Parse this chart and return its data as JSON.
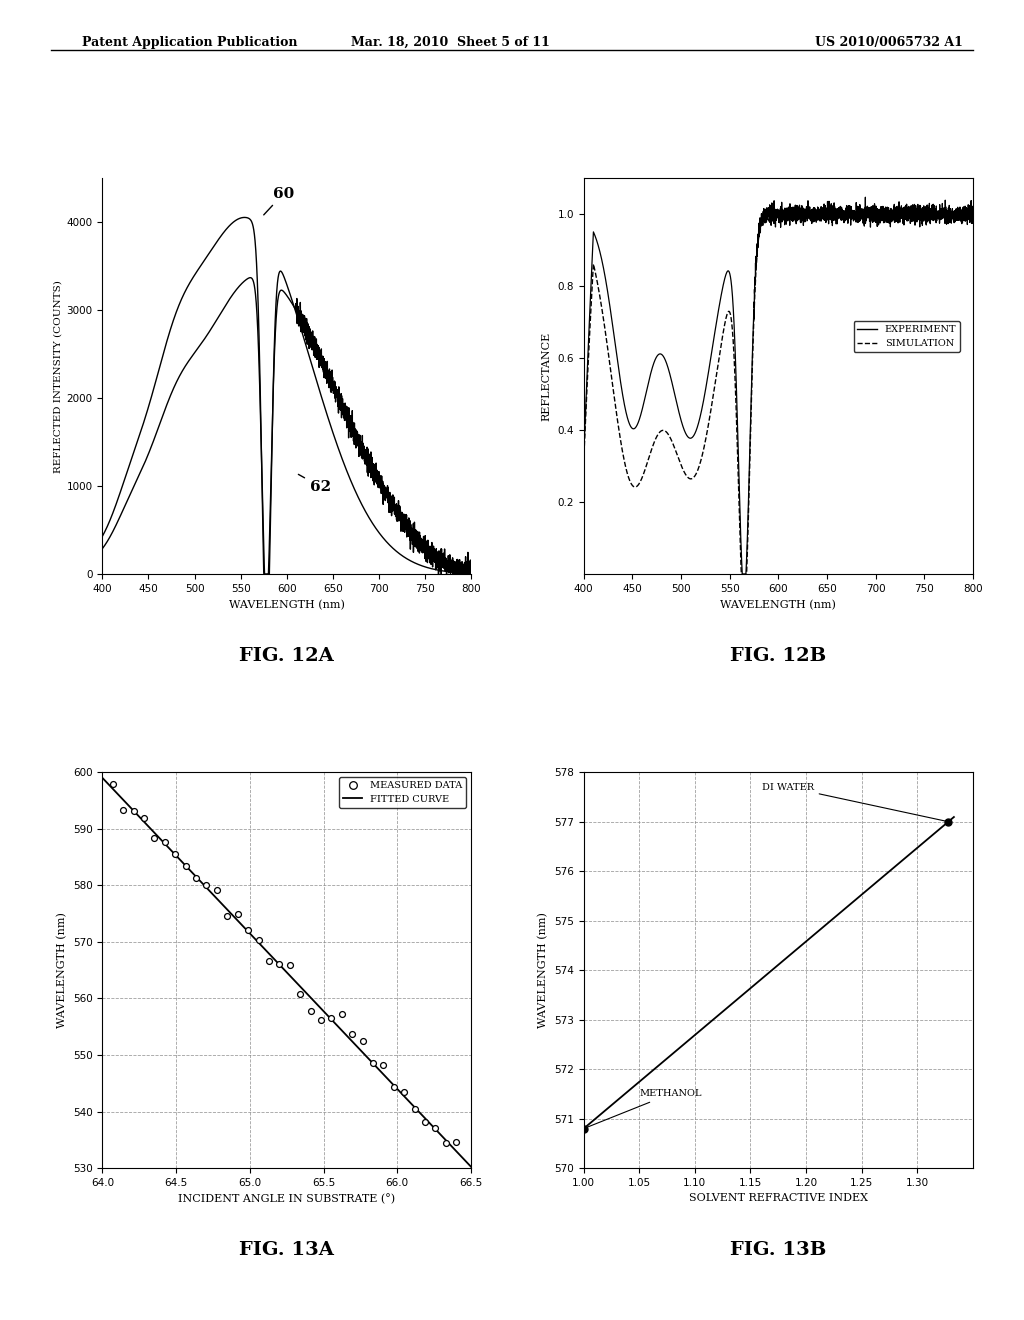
{
  "header_left": "Patent Application Publication",
  "header_center": "Mar. 18, 2010  Sheet 5 of 11",
  "header_right": "US 2010/0065732 A1",
  "fig12a": {
    "title": "FIG. 12A",
    "xlabel": "WAVELENGTH (nm)",
    "ylabel": "REFLECTED INTENSITY (COUNTS)",
    "xlim": [
      400,
      800
    ],
    "ylim": [
      0,
      4500
    ],
    "yticks": [
      0,
      1000,
      2000,
      3000,
      4000
    ],
    "xticks": [
      400,
      450,
      500,
      550,
      600,
      650,
      700,
      750,
      800
    ],
    "label60": "60",
    "label62": "62"
  },
  "fig12b": {
    "title": "FIG. 12B",
    "xlabel": "WAVELENGTH (nm)",
    "ylabel": "REFLECTANCE",
    "xlim": [
      400,
      800
    ],
    "ylim": [
      0,
      1.1
    ],
    "yticks": [
      0.2,
      0.4,
      0.6,
      0.8,
      1.0
    ],
    "xticks": [
      400,
      450,
      500,
      550,
      600,
      650,
      700,
      750,
      800
    ],
    "legend_experiment": "EXPERIMENT",
    "legend_simulation": "SIMULATION"
  },
  "fig13a": {
    "title": "FIG. 13A",
    "xlabel": "INCIDENT ANGLE IN SUBSTRATE (°)",
    "ylabel": "WAVELENGTH (nm)",
    "xlim": [
      64,
      66.5
    ],
    "ylim": [
      530,
      600
    ],
    "yticks": [
      530,
      540,
      550,
      560,
      570,
      580,
      590,
      600
    ],
    "xticks": [
      64,
      64.5,
      65,
      65.5,
      66,
      66.5
    ],
    "legend_measured": "MEASURED DATA",
    "legend_fitted": "FITTED CURVE"
  },
  "fig13b": {
    "title": "FIG. 13B",
    "xlabel": "SOLVENT REFRACTIVE INDEX",
    "ylabel": "WAVELENGTH (nm)",
    "xlim": [
      1.0,
      1.35
    ],
    "ylim": [
      570,
      578
    ],
    "yticks": [
      570,
      571,
      572,
      573,
      574,
      575,
      576,
      577,
      578
    ],
    "xticks": [
      1.0,
      1.05,
      1.1,
      1.15,
      1.2,
      1.25,
      1.3
    ],
    "label_diwater": "DI WATER",
    "label_methanol": "METHANOL",
    "ri_methanol": 1.0,
    "wl_methanol": 570.8,
    "ri_diwater": 1.328,
    "wl_diwater": 577.0
  },
  "bg_color": "#ffffff",
  "line_color": "#000000"
}
